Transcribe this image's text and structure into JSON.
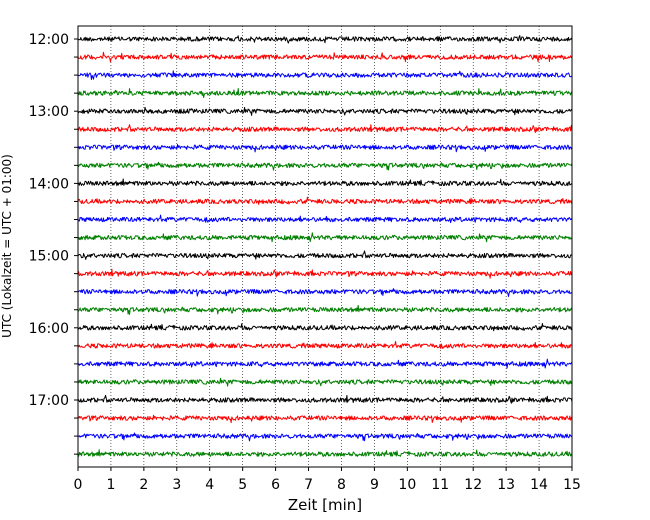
{
  "chart_data": {
    "type": "line",
    "xlabel": "Zeit  [min]",
    "ylabel": "UTC (Lokalzeit = UTC + 01:00)",
    "xlim": [
      0,
      15
    ],
    "x_ticks": [
      0,
      1,
      2,
      3,
      4,
      5,
      6,
      7,
      8,
      9,
      10,
      11,
      12,
      13,
      14,
      15
    ],
    "y_tick_labels": [
      "12:00",
      "13:00",
      "14:00",
      "15:00",
      "16:00",
      "17:00"
    ],
    "grid": "vertical dotted",
    "trace_colors": [
      "#000000",
      "#ff0000",
      "#0000ff",
      "#008000"
    ],
    "series": [
      {
        "start": "12:00",
        "values": []
      },
      {
        "start": "12:15",
        "values": []
      },
      {
        "start": "12:30",
        "values": []
      },
      {
        "start": "12:45",
        "values": []
      },
      {
        "start": "13:00",
        "values": []
      },
      {
        "start": "13:15",
        "values": []
      },
      {
        "start": "13:30",
        "values": []
      },
      {
        "start": "13:45",
        "values": []
      },
      {
        "start": "14:00",
        "values": []
      },
      {
        "start": "14:15",
        "values": []
      },
      {
        "start": "14:30",
        "values": []
      },
      {
        "start": "14:45",
        "values": []
      },
      {
        "start": "15:00",
        "values": []
      },
      {
        "start": "15:15",
        "values": []
      },
      {
        "start": "15:30",
        "values": []
      },
      {
        "start": "15:45",
        "values": []
      },
      {
        "start": "16:00",
        "values": []
      },
      {
        "start": "16:15",
        "values": []
      },
      {
        "start": "16:30",
        "values": []
      },
      {
        "start": "16:45",
        "values": []
      },
      {
        "start": "17:00",
        "values": []
      },
      {
        "start": "17:15",
        "values": []
      },
      {
        "start": "17:30",
        "values": []
      },
      {
        "start": "17:45",
        "values": []
      }
    ]
  }
}
